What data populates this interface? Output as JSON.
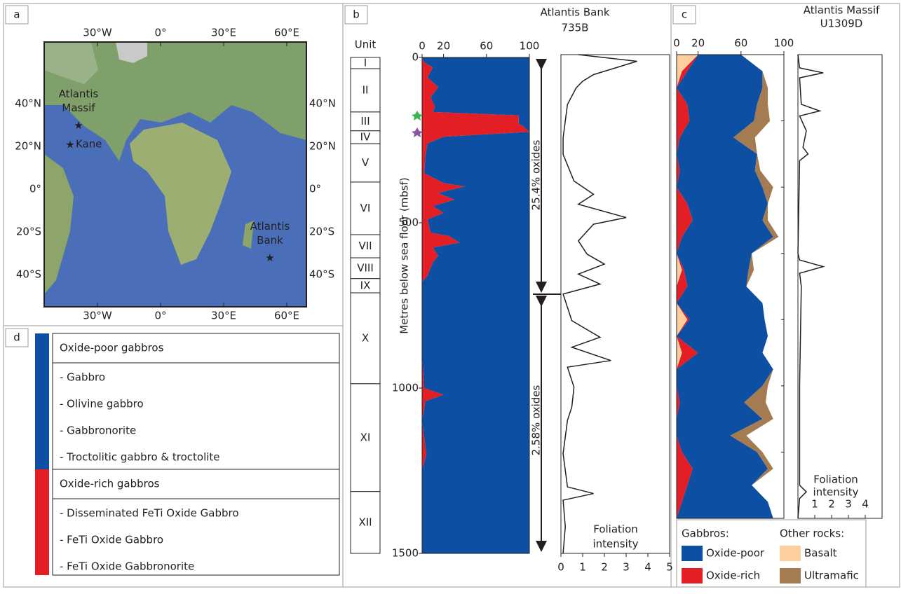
{
  "panel_a": {
    "label": "a",
    "xticks": [
      {
        "value": -30,
        "label": "30°W"
      },
      {
        "value": 0,
        "label": "0°"
      },
      {
        "value": 30,
        "label": "30°E"
      },
      {
        "value": 60,
        "label": "60°E"
      }
    ],
    "yticks": [
      {
        "value": 40,
        "label": "40°N"
      },
      {
        "value": 20,
        "label": "20°N"
      },
      {
        "value": 0,
        "label": "0°"
      },
      {
        "value": -20,
        "label": "20°S"
      },
      {
        "value": -40,
        "label": "40°S"
      }
    ],
    "sites": [
      {
        "lines": [
          "Atlantis",
          "Massif"
        ],
        "lon": -39,
        "lat": 30
      },
      {
        "lines": [
          "Kane"
        ],
        "lon": -43,
        "lat": 21
      },
      {
        "lines": [
          "Atlantis",
          "Bank"
        ],
        "lon": 52,
        "lat": -32
      }
    ]
  },
  "panel_b": {
    "label": "b",
    "title": [
      "Atlantis Bank",
      "735B"
    ],
    "unit_header": "Unit",
    "y_label": "Metres below sea floor (mbsf)",
    "units": [
      {
        "label": "I",
        "top": 0,
        "bottom": 34
      },
      {
        "label": "II",
        "top": 34,
        "bottom": 165
      },
      {
        "label": "III",
        "top": 165,
        "bottom": 222
      },
      {
        "label": "IV",
        "top": 222,
        "bottom": 261
      },
      {
        "label": "V",
        "top": 261,
        "bottom": 377
      },
      {
        "label": "VI",
        "top": 377,
        "bottom": 536
      },
      {
        "label": "VII",
        "top": 536,
        "bottom": 606
      },
      {
        "label": "VIII",
        "top": 606,
        "bottom": 669
      },
      {
        "label": "IX",
        "top": 669,
        "bottom": 712
      },
      {
        "label": "X",
        "top": 712,
        "bottom": 987
      },
      {
        "label": "XI",
        "top": 987,
        "bottom": 1313
      },
      {
        "label": "XII",
        "top": 1313,
        "bottom": 1500
      }
    ],
    "annotations": [
      "25.4% oxides",
      "2.58% oxides"
    ],
    "oxide": {
      "type": "area",
      "xlim": [
        0,
        100
      ],
      "xticks": [
        0,
        20,
        60,
        100
      ],
      "ylim": [
        0,
        1500
      ],
      "yticks": [
        0,
        500,
        1000,
        1500
      ],
      "depth": [
        0,
        15,
        30,
        60,
        90,
        120,
        150,
        165,
        175,
        200,
        210,
        225,
        240,
        260,
        300,
        350,
        380,
        390,
        410,
        430,
        450,
        470,
        490,
        530,
        540,
        560,
        575,
        600,
        620,
        660,
        680,
        720,
        900,
        1000,
        1020,
        1040,
        1100,
        1200,
        1250,
        1400,
        1500
      ],
      "series": [
        {
          "name": "Oxide-rich",
          "color": "#e31e25",
          "values": [
            0,
            2,
            10,
            5,
            15,
            8,
            12,
            10,
            90,
            90,
            95,
            100,
            20,
            5,
            3,
            2,
            20,
            40,
            15,
            30,
            10,
            20,
            5,
            8,
            25,
            35,
            10,
            15,
            10,
            5,
            0,
            0,
            0,
            2,
            20,
            3,
            0,
            4,
            0,
            0,
            0
          ]
        },
        {
          "name": "Oxide-poor",
          "color": "#0d4fa2",
          "values": [
            100,
            98,
            90,
            95,
            85,
            92,
            88,
            90,
            10,
            10,
            5,
            0,
            80,
            95,
            97,
            98,
            80,
            60,
            85,
            70,
            90,
            80,
            95,
            92,
            75,
            65,
            90,
            85,
            90,
            95,
            100,
            100,
            100,
            98,
            80,
            97,
            100,
            96,
            100,
            100,
            100
          ]
        }
      ]
    },
    "foliation": {
      "type": "line",
      "label": [
        "Foliation",
        "intensity"
      ],
      "xlim": [
        0,
        5
      ],
      "xticks": [
        0,
        1,
        2,
        3,
        4,
        5
      ],
      "ylim": [
        0,
        1500
      ],
      "depth": [
        0,
        20,
        40,
        60,
        80,
        100,
        150,
        200,
        250,
        300,
        380,
        420,
        450,
        490,
        510,
        560,
        600,
        630,
        660,
        690,
        720,
        800,
        850,
        880,
        920,
        940,
        1000,
        1060,
        1100,
        1200,
        1300,
        1320,
        1340,
        1420,
        1500
      ],
      "values": [
        0.8,
        3.5,
        2.5,
        1.5,
        1,
        0.7,
        0.3,
        0.2,
        0.1,
        0.1,
        0.6,
        1.5,
        0.8,
        3,
        1.5,
        0.8,
        1.2,
        2,
        0.8,
        1.8,
        0.1,
        0.5,
        1.8,
        0.5,
        2.3,
        0.3,
        0.6,
        0.5,
        0.3,
        0.1,
        0.3,
        1.5,
        0.1,
        0.2,
        0.1
      ]
    }
  },
  "panel_c": {
    "label": "c",
    "title": [
      "Atlantis Massif",
      "U1309D"
    ],
    "oxide": {
      "type": "area",
      "xlim": [
        0,
        100
      ],
      "xticks": [
        0,
        20,
        60,
        100
      ],
      "ylim": [
        0,
        1400
      ],
      "yticks": [
        0,
        200,
        400,
        600,
        800,
        1000,
        1200,
        1400
      ],
      "depth": [
        0,
        50,
        100,
        150,
        200,
        250,
        300,
        350,
        400,
        450,
        500,
        550,
        600,
        650,
        700,
        750,
        800,
        850,
        900,
        950,
        1000,
        1050,
        1100,
        1150,
        1200,
        1250,
        1300,
        1350,
        1400
      ],
      "series": [
        {
          "name": "Basalt",
          "color": "#fdcf9f",
          "values": [
            20,
            5,
            0,
            0,
            0,
            0,
            0,
            0,
            0,
            0,
            0,
            0,
            0,
            5,
            0,
            0,
            10,
            0,
            5,
            0,
            0,
            0,
            0,
            0,
            0,
            0,
            0,
            0,
            0
          ]
        },
        {
          "name": "Oxide-rich",
          "color": "#e31e25",
          "values": [
            0,
            5,
            0,
            10,
            12,
            3,
            0,
            3,
            0,
            10,
            15,
            5,
            0,
            2,
            10,
            0,
            2,
            0,
            15,
            0,
            0,
            3,
            0,
            0,
            5,
            15,
            10,
            5,
            0
          ]
        },
        {
          "name": "Oxide-poor",
          "color": "#0d4fa2",
          "values": [
            40,
            70,
            80,
            65,
            60,
            50,
            75,
            70,
            80,
            75,
            65,
            85,
            70,
            60,
            55,
            80,
            70,
            85,
            60,
            90,
            80,
            60,
            80,
            50,
            70,
            70,
            60,
            80,
            90
          ]
        },
        {
          "name": "Ultramafic",
          "color": "#a57c52",
          "values": [
            0,
            0,
            5,
            10,
            15,
            20,
            0,
            5,
            10,
            0,
            5,
            5,
            0,
            5,
            0,
            0,
            0,
            0,
            0,
            0,
            5,
            20,
            10,
            15,
            5,
            5,
            0,
            0,
            0
          ]
        }
      ]
    },
    "foliation": {
      "type": "line",
      "label": [
        "Foliation",
        "intensity"
      ],
      "xlim": [
        0,
        5
      ],
      "xticks": [
        1,
        2,
        3,
        4
      ],
      "ylim": [
        0,
        1400
      ],
      "depth": [
        0,
        40,
        55,
        70,
        150,
        170,
        185,
        230,
        280,
        300,
        320,
        600,
        620,
        640,
        660,
        700,
        1000,
        1300,
        1320,
        1340,
        1400
      ],
      "values": [
        0,
        0.1,
        1.5,
        0.1,
        0.2,
        1.3,
        0.1,
        0.5,
        0.3,
        0.6,
        0.1,
        0,
        0.1,
        1.5,
        0.1,
        0.2,
        0.1,
        0.1,
        0.5,
        0.1,
        0
      ]
    },
    "legend": {
      "gabbros_header": "Gabbros:",
      "other_header": "Other rocks:"
    }
  },
  "panel_d": {
    "label": "d",
    "groups": [
      {
        "header": "Oxide-poor gabbros",
        "color": "#0d4fa2",
        "items": [
          "- Gabbro",
          "- Olivine gabbro",
          "- Gabbronorite",
          "- Troctolitic gabbro & troctolite"
        ]
      },
      {
        "header": "Oxide-rich gabbros",
        "color": "#e31e25",
        "items": [
          "- Disseminated FeTi Oxide Gabbro",
          "- FeTi Oxide Gabbro",
          "- FeTi Oxide Gabbronorite"
        ]
      }
    ]
  }
}
